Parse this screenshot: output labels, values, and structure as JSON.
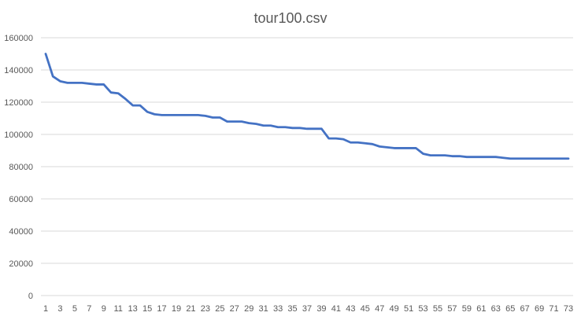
{
  "chart_data": {
    "type": "line",
    "title": "tour100.csv",
    "xlabel": "",
    "ylabel": "",
    "ylim": [
      0,
      160000
    ],
    "y_ticks": [
      "0",
      "20000",
      "40000",
      "60000",
      "80000",
      "100000",
      "120000",
      "140000",
      "160000"
    ],
    "x_tick_labels": [
      "1",
      "3",
      "5",
      "7",
      "9",
      "11",
      "13",
      "15",
      "17",
      "19",
      "21",
      "23",
      "25",
      "27",
      "29",
      "31",
      "33",
      "35",
      "37",
      "39",
      "41",
      "43",
      "45",
      "47",
      "49",
      "51",
      "53",
      "55",
      "57",
      "59",
      "61",
      "63",
      "65",
      "67",
      "69",
      "71",
      "73"
    ],
    "grid": true,
    "legend": "none",
    "line_color": "#4472c4",
    "x": [
      1,
      2,
      3,
      4,
      5,
      6,
      7,
      8,
      9,
      10,
      11,
      12,
      13,
      14,
      15,
      16,
      17,
      18,
      19,
      20,
      21,
      22,
      23,
      24,
      25,
      26,
      27,
      28,
      29,
      30,
      31,
      32,
      33,
      34,
      35,
      36,
      37,
      38,
      39,
      40,
      41,
      42,
      43,
      44,
      45,
      46,
      47,
      48,
      49,
      50,
      51,
      52,
      53,
      54,
      55,
      56,
      57,
      58,
      59,
      60,
      61,
      62,
      63,
      64,
      65,
      66,
      67,
      68,
      69,
      70,
      71,
      72,
      73
    ],
    "series": [
      {
        "values": [
          150000,
          136000,
          133000,
          132000,
          132000,
          132000,
          131500,
          131000,
          131000,
          126000,
          125500,
          122000,
          118000,
          118000,
          114000,
          112500,
          112000,
          112000,
          112000,
          112000,
          112000,
          112000,
          111500,
          110500,
          110500,
          108000,
          108000,
          108000,
          107000,
          106500,
          105500,
          105500,
          104500,
          104500,
          104000,
          104000,
          103500,
          103500,
          103500,
          97500,
          97500,
          97000,
          95000,
          95000,
          94500,
          94000,
          92500,
          92000,
          91500,
          91500,
          91500,
          91500,
          88000,
          87000,
          87000,
          87000,
          86500,
          86500,
          86000,
          86000,
          86000,
          86000,
          86000,
          85500,
          85000,
          85000,
          85000,
          85000,
          85000,
          85000,
          85000,
          85000,
          85000
        ]
      }
    ]
  }
}
